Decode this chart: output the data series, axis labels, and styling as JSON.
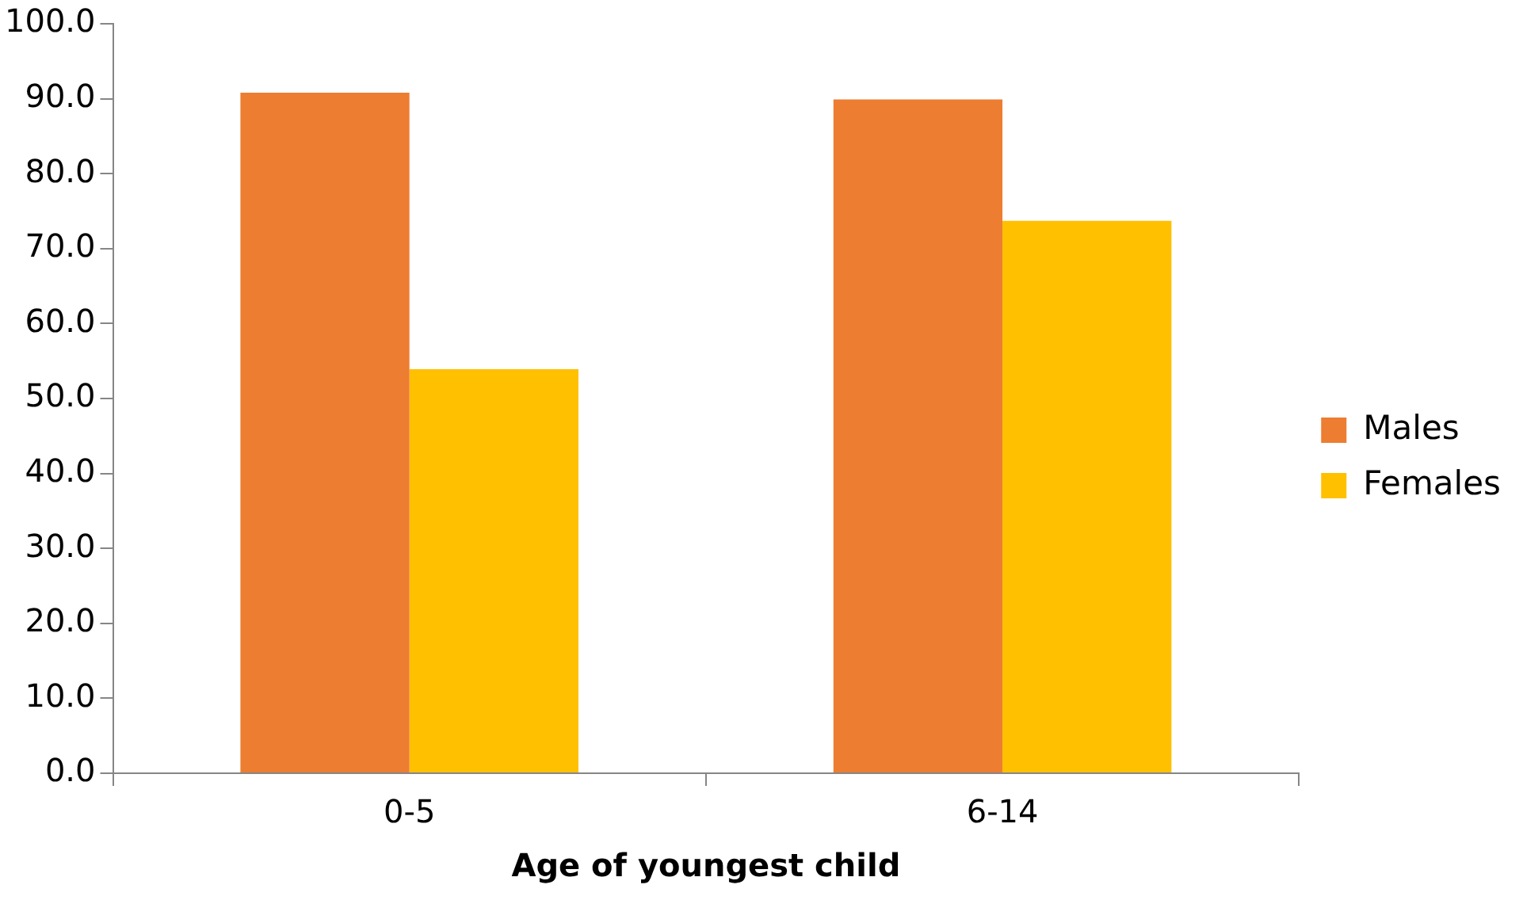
{
  "chart_data": {
    "type": "bar",
    "xlabel": "Age of youngest child",
    "categories": [
      "0-5",
      "6-14"
    ],
    "series": [
      {
        "name": "Males",
        "color": "#ed7d31",
        "values": [
          90.8,
          89.9
        ]
      },
      {
        "name": "Females",
        "color": "#ffc000",
        "values": [
          53.9,
          73.7
        ]
      }
    ],
    "ylim": [
      0,
      100
    ],
    "yticks": [
      {
        "value": 0,
        "label": "0.0"
      },
      {
        "value": 10,
        "label": "10.0"
      },
      {
        "value": 20,
        "label": "20.0"
      },
      {
        "value": 30,
        "label": "30.0"
      },
      {
        "value": 40,
        "label": "40.0"
      },
      {
        "value": 50,
        "label": "50.0"
      },
      {
        "value": 60,
        "label": "60.0"
      },
      {
        "value": 70,
        "label": "70.0"
      },
      {
        "value": 80,
        "label": "80.0"
      },
      {
        "value": 90,
        "label": "90.0"
      },
      {
        "value": 100,
        "label": "100.0"
      }
    ],
    "grid": false,
    "legend": "right"
  }
}
